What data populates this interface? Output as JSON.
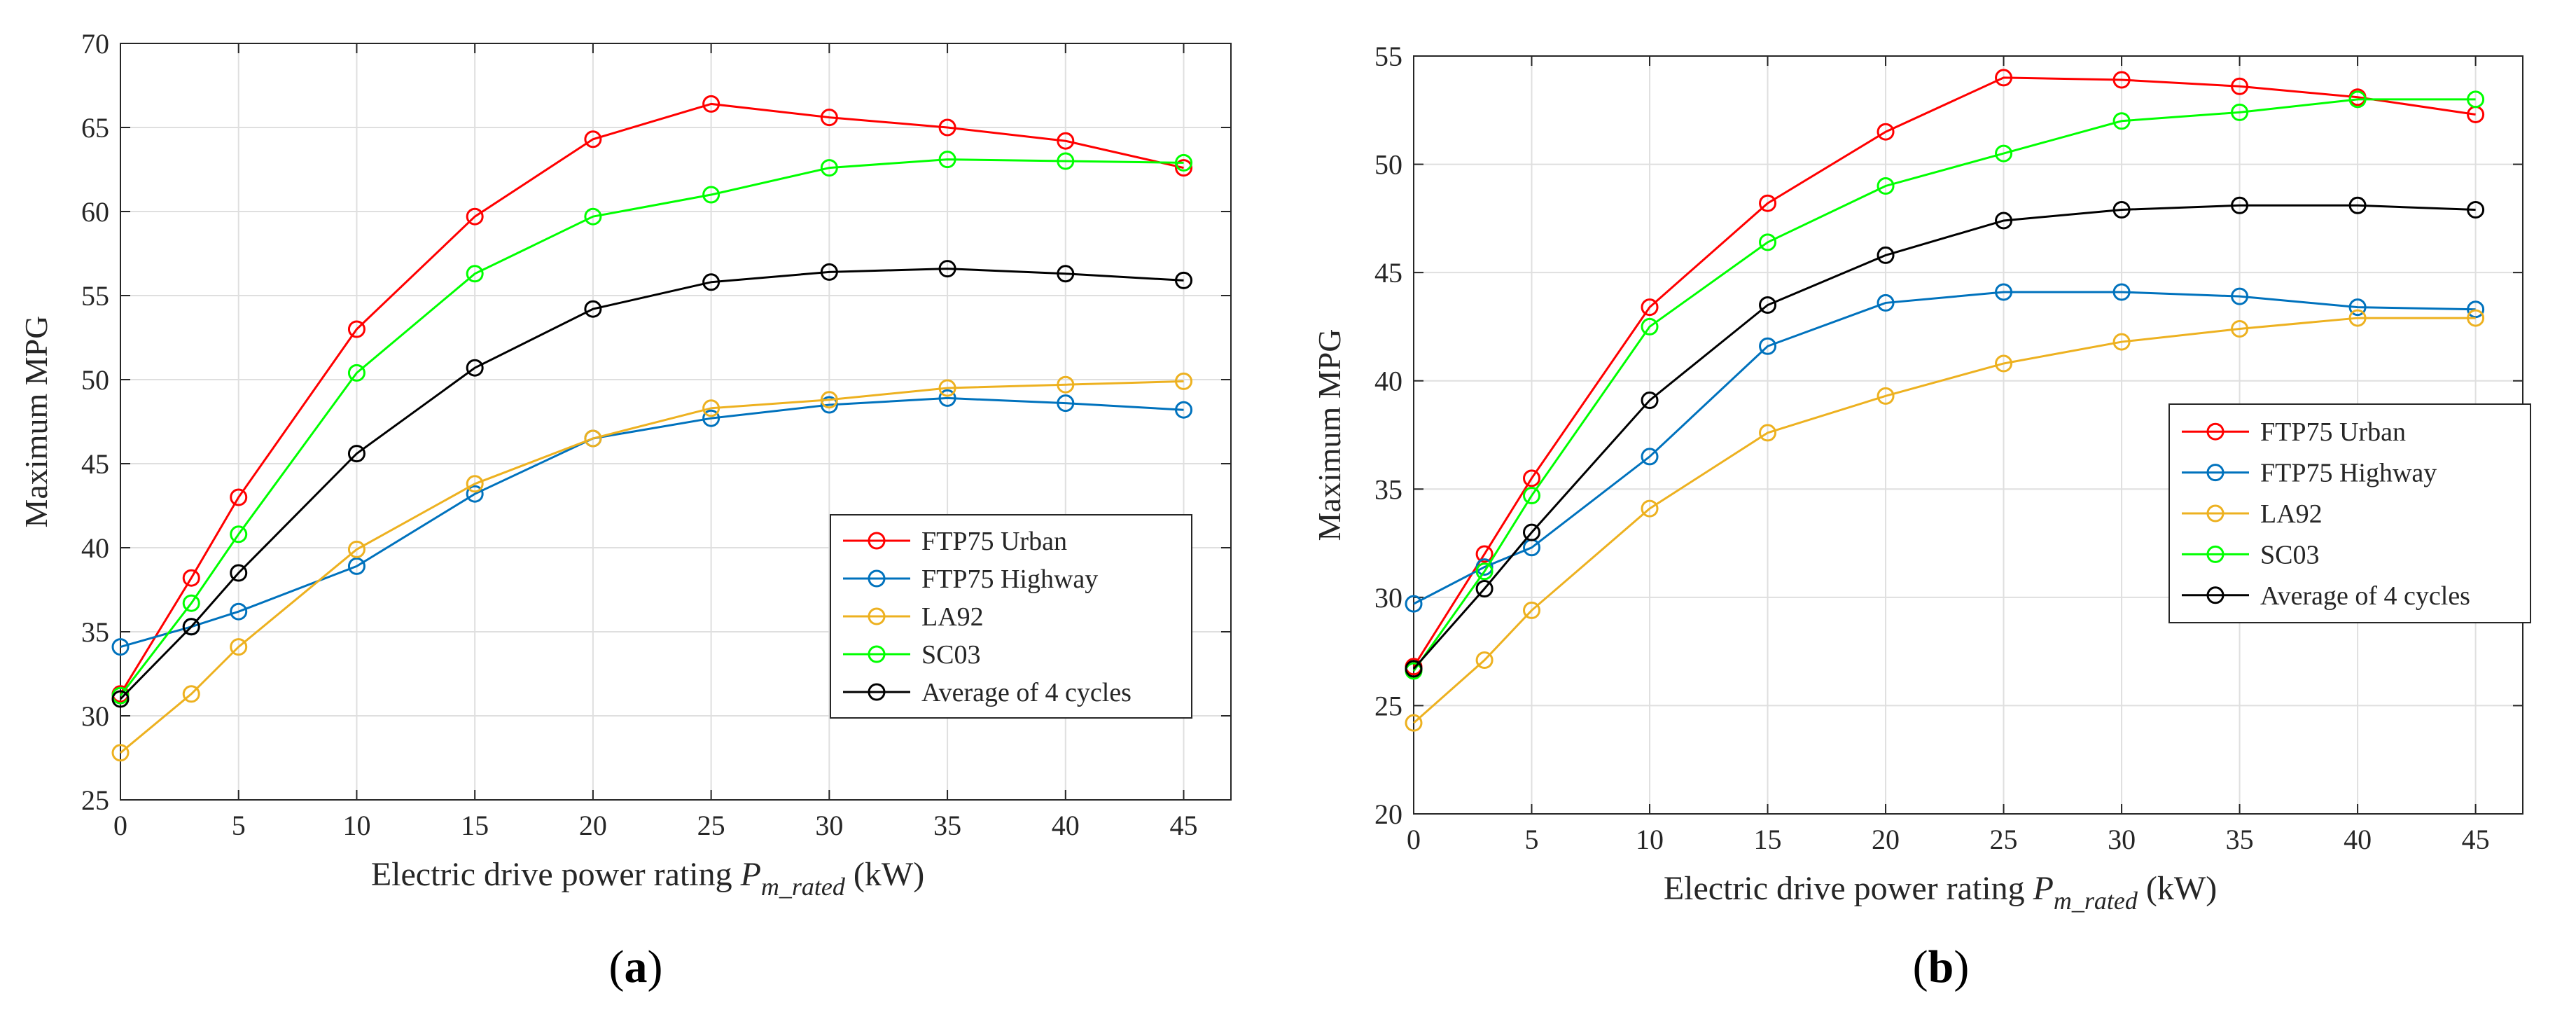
{
  "figure": {
    "panel_labels": [
      "(a)",
      "(b)"
    ]
  },
  "chart_data": [
    {
      "type": "line",
      "panel": "(a)",
      "title": "",
      "xlabel_main": "Electric drive power rating ",
      "xlabel_var": "P",
      "xlabel_sub": "m_rated",
      "xlabel_unit": " (kW)",
      "ylabel": "Maximum MPG",
      "x": [
        0,
        3,
        5,
        10,
        15,
        20,
        25,
        30,
        35,
        40,
        45
      ],
      "xlim": [
        0,
        47
      ],
      "ylim": [
        25,
        70
      ],
      "xticks": [
        0,
        5,
        10,
        15,
        20,
        25,
        30,
        35,
        40,
        45
      ],
      "yticks": [
        25,
        30,
        35,
        40,
        45,
        50,
        55,
        60,
        65,
        70
      ],
      "grid": true,
      "legend_position": "lower-right",
      "series": [
        {
          "name": "FTP75 Urban",
          "color": "#ff0000",
          "values": [
            31.3,
            38.2,
            43.0,
            53.0,
            59.7,
            64.3,
            66.4,
            65.6,
            65.0,
            64.2,
            62.6
          ]
        },
        {
          "name": "FTP75 Highway",
          "color": "#0072bd",
          "values": [
            34.1,
            35.3,
            36.2,
            38.9,
            43.2,
            46.5,
            47.7,
            48.5,
            48.9,
            48.6,
            48.2
          ]
        },
        {
          "name": "LA92",
          "color": "#edb120",
          "values": [
            27.8,
            31.3,
            34.1,
            39.9,
            43.8,
            46.5,
            48.3,
            48.8,
            49.5,
            49.7,
            49.9
          ]
        },
        {
          "name": "SC03",
          "color": "#00ff00",
          "values": [
            31.2,
            36.7,
            40.8,
            50.4,
            56.3,
            59.7,
            61.0,
            62.6,
            63.1,
            63.0,
            62.9
          ]
        },
        {
          "name": "Average of 4 cycles",
          "color": "#000000",
          "values": [
            31.0,
            35.3,
            38.5,
            45.6,
            50.7,
            54.2,
            55.8,
            56.4,
            56.6,
            56.3,
            55.9
          ]
        }
      ]
    },
    {
      "type": "line",
      "panel": "(b)",
      "title": "",
      "xlabel_main": "Electric drive power rating ",
      "xlabel_var": "P",
      "xlabel_sub": "m_rated",
      "xlabel_unit": " (kW)",
      "ylabel": "Maximum MPG",
      "x": [
        0,
        3,
        5,
        10,
        15,
        20,
        25,
        30,
        35,
        40,
        45
      ],
      "xlim": [
        0,
        47
      ],
      "ylim": [
        20,
        55
      ],
      "xticks": [
        0,
        5,
        10,
        15,
        20,
        25,
        30,
        35,
        40,
        45
      ],
      "yticks": [
        20,
        25,
        30,
        35,
        40,
        45,
        50,
        55
      ],
      "grid": true,
      "legend_position": "middle-right",
      "series": [
        {
          "name": "FTP75 Urban",
          "color": "#ff0000",
          "values": [
            26.8,
            32.0,
            35.5,
            43.4,
            48.2,
            51.5,
            54.0,
            53.9,
            53.6,
            53.1,
            52.3
          ]
        },
        {
          "name": "FTP75 Highway",
          "color": "#0072bd",
          "values": [
            29.7,
            31.4,
            32.3,
            36.5,
            41.6,
            43.6,
            44.1,
            44.1,
            43.9,
            43.4,
            43.3
          ]
        },
        {
          "name": "LA92",
          "color": "#edb120",
          "values": [
            24.2,
            27.1,
            29.4,
            34.1,
            37.6,
            39.3,
            40.8,
            41.8,
            42.4,
            42.9,
            42.9
          ]
        },
        {
          "name": "SC03",
          "color": "#00ff00",
          "values": [
            26.6,
            31.2,
            34.7,
            42.5,
            46.4,
            49.0,
            50.5,
            52.0,
            52.4,
            53.0,
            53.0
          ]
        },
        {
          "name": "Average of 4 cycles",
          "color": "#000000",
          "values": [
            26.7,
            30.4,
            33.0,
            39.1,
            43.5,
            45.8,
            47.4,
            47.9,
            48.1,
            48.1,
            47.9
          ]
        }
      ]
    }
  ]
}
